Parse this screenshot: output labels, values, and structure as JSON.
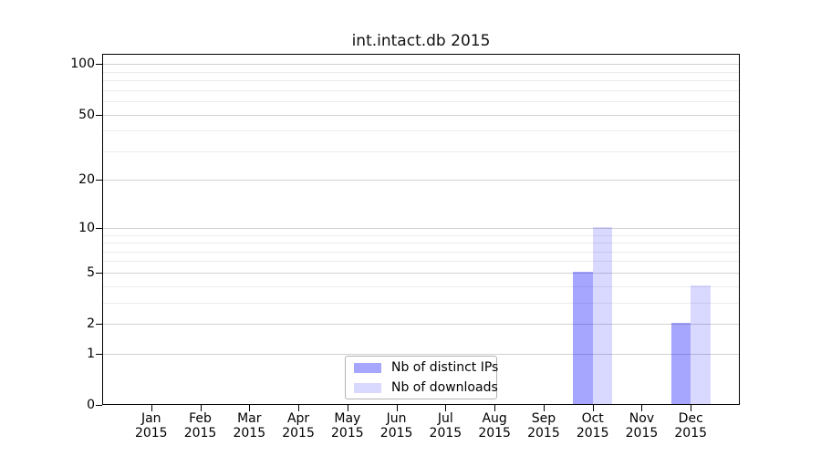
{
  "chart_data": {
    "type": "bar",
    "title": "int.intact.db 2015",
    "x": {
      "categories": [
        "Jan",
        "Feb",
        "Mar",
        "Apr",
        "May",
        "Jun",
        "Jul",
        "Aug",
        "Sep",
        "Oct",
        "Nov",
        "Dec"
      ],
      "year": "2015"
    },
    "y": {
      "scale": "log1p",
      "ticks": [
        0,
        1,
        2,
        5,
        10,
        20,
        50,
        100
      ],
      "minor_gridlines": [
        3,
        4,
        6,
        7,
        8,
        9,
        30,
        40,
        60,
        70,
        80,
        90
      ],
      "ylim": [
        0,
        115
      ],
      "grid": "on"
    },
    "series": [
      {
        "name": "Nb of distinct IPs",
        "color": "rgba(0,0,255,0.35)",
        "values": [
          0,
          0,
          0,
          0,
          0,
          0,
          0,
          0,
          0,
          5,
          0,
          2
        ]
      },
      {
        "name": "Nb of downloads",
        "color": "rgba(0,0,255,0.15)",
        "values": [
          0,
          0,
          0,
          0,
          0,
          0,
          0,
          0,
          0,
          10,
          0,
          4
        ]
      }
    ],
    "legend_position": "lower center",
    "colors": {
      "background": "#ffffff",
      "axis": "#000000",
      "major_grid": "#d2d2d2",
      "minor_grid": "#ececec",
      "text": "#000000"
    }
  }
}
